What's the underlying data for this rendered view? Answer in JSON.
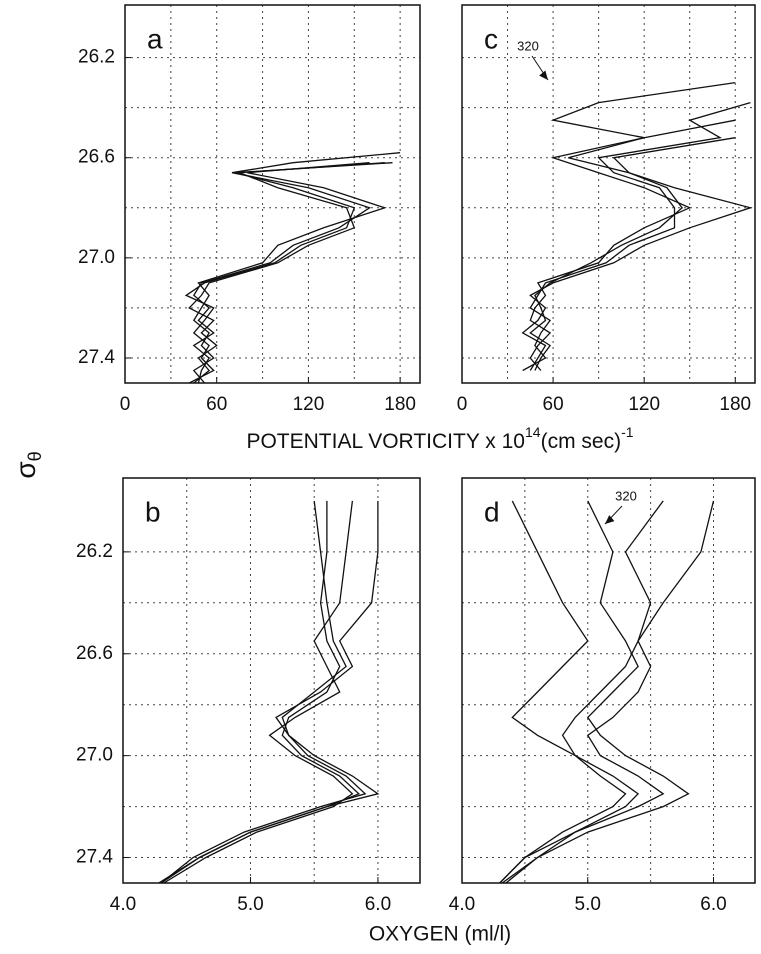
{
  "y_label": {
    "symbol": "σ",
    "subscript": "θ"
  },
  "pv_axis_label": {
    "text": "POTENTIAL VORTICITY x 10",
    "exponent": "14",
    "unit": "(cm sec)",
    "unit_exponent": "-1"
  },
  "oxygen_axis_label": "OXYGEN  (ml/l)",
  "chart_data": [
    {
      "type": "line",
      "panel_label": "a",
      "color": "#111",
      "y_inverted": true,
      "grid": true,
      "xlim": [
        0,
        193
      ],
      "ylim": [
        25.99,
        27.5
      ],
      "xticks": [
        0,
        60,
        120,
        180
      ],
      "yticks": [
        26.2,
        26.6,
        {
          "value": 27,
          "label": "27.0"
        },
        27.4
      ],
      "xgrid": [
        30,
        60,
        90,
        120,
        150,
        180
      ],
      "ygrid": [
        26.2,
        26.4,
        26.6,
        26.8,
        27,
        27.2,
        27.4
      ],
      "levels": [
        26.58,
        26.62,
        26.66,
        26.72,
        26.8,
        26.88,
        26.95,
        27.02,
        27.1,
        27.15,
        27.2,
        27.25,
        27.3,
        27.35,
        27.4,
        27.45,
        27.5
      ],
      "series": [
        {
          "values": [
            180,
            110,
            70,
            120,
            160,
            140,
            110,
            95,
            50,
            45,
            55,
            48,
            58,
            45,
            55,
            50,
            48
          ]
        },
        {
          "values": [
            null,
            170,
            75,
            100,
            145,
            150,
            120,
            100,
            55,
            50,
            42,
            58,
            50,
            60,
            48,
            55,
            45
          ]
        },
        {
          "values": [
            null,
            160,
            80,
            130,
            170,
            130,
            100,
            90,
            48,
            55,
            50,
            45,
            55,
            50,
            58,
            45,
            52
          ]
        },
        {
          "values": [
            null,
            175,
            72,
            110,
            150,
            145,
            115,
            98,
            52,
            40,
            58,
            52,
            45,
            55,
            50,
            58,
            42
          ]
        }
      ]
    },
    {
      "type": "line",
      "panel_label": "b",
      "color": "#111",
      "y_inverted": true,
      "grid": true,
      "xlim": [
        4.0,
        6.33
      ],
      "ylim": [
        25.91,
        27.5
      ],
      "xticks": [
        {
          "value": 4,
          "label": "4.0"
        },
        {
          "value": 5,
          "label": "5.0"
        },
        {
          "value": 6,
          "label": "6.0"
        }
      ],
      "yticks": [
        26.2,
        26.6,
        {
          "value": 27,
          "label": "27.0"
        },
        27.4
      ],
      "xgrid": [
        4.5,
        5,
        5.5,
        6
      ],
      "ygrid": [
        26.2,
        26.4,
        26.6,
        26.8,
        27,
        27.2,
        27.4
      ],
      "levels": [
        26.0,
        26.2,
        26.4,
        26.55,
        26.65,
        26.75,
        26.85,
        26.92,
        27.0,
        27.08,
        27.15,
        27.2,
        27.3,
        27.4,
        27.5
      ],
      "series": [
        {
          "values": [
            5.6,
            5.6,
            5.55,
            5.6,
            5.7,
            5.6,
            5.3,
            5.25,
            5.4,
            5.7,
            5.85,
            5.6,
            5.0,
            4.6,
            4.3
          ]
        },
        {
          "values": [
            6.0,
            6.0,
            5.95,
            5.7,
            5.8,
            5.55,
            5.2,
            5.3,
            5.45,
            5.75,
            5.9,
            5.55,
            4.95,
            4.55,
            4.3
          ]
        },
        {
          "values": [
            5.8,
            5.75,
            5.7,
            5.5,
            5.6,
            5.7,
            5.35,
            5.15,
            5.35,
            5.65,
            5.8,
            5.65,
            5.05,
            4.65,
            4.32
          ]
        },
        {
          "values": [
            5.5,
            5.55,
            5.6,
            5.65,
            5.75,
            5.5,
            5.25,
            5.3,
            5.5,
            5.8,
            6.0,
            5.6,
            5.0,
            4.6,
            4.28
          ]
        }
      ]
    },
    {
      "type": "line",
      "panel_label": "c",
      "color": "#111",
      "y_inverted": true,
      "grid": true,
      "xlim": [
        0,
        193
      ],
      "ylim": [
        25.99,
        27.5
      ],
      "xticks": [
        0,
        60,
        120,
        180
      ],
      "xgrid": [
        30,
        60,
        90,
        120,
        150,
        180
      ],
      "ygrid": [
        26.2,
        26.4,
        26.6,
        26.8,
        27,
        27.2,
        27.4
      ],
      "annotation": "320",
      "levels": [
        26.3,
        26.38,
        26.45,
        26.52,
        26.6,
        26.66,
        26.72,
        26.8,
        26.88,
        26.95,
        27.02,
        27.1,
        27.15,
        27.2,
        27.25,
        27.3,
        27.35,
        27.4,
        27.45
      ],
      "series": [
        {
          "values": [
            180,
            90,
            60,
            120,
            70,
            110,
            140,
            190,
            150,
            120,
            100,
            60,
            45,
            55,
            50,
            40,
            55,
            50,
            45
          ]
        },
        {
          "values": [
            null,
            190,
            150,
            170,
            90,
            100,
            130,
            140,
            140,
            110,
            95,
            55,
            50,
            45,
            58,
            52,
            48,
            55,
            40
          ]
        },
        {
          "values": [
            null,
            null,
            180,
            120,
            60,
            90,
            120,
            150,
            120,
            100,
            90,
            50,
            55,
            48,
            45,
            58,
            50,
            45,
            52
          ]
        },
        {
          "values": [
            null,
            null,
            null,
            180,
            100,
            110,
            135,
            145,
            130,
            105,
            85,
            58,
            48,
            52,
            55,
            45,
            58,
            52,
            48
          ]
        }
      ]
    },
    {
      "type": "line",
      "panel_label": "d",
      "color": "#111",
      "y_inverted": true,
      "grid": true,
      "xlim": [
        4.0,
        6.33
      ],
      "ylim": [
        25.91,
        27.5
      ],
      "xticks": [
        {
          "value": 4,
          "label": "4.0"
        },
        {
          "value": 5,
          "label": "5.0"
        },
        {
          "value": 6,
          "label": "6.0"
        }
      ],
      "xgrid": [
        4.5,
        5,
        5.5,
        6
      ],
      "ygrid": [
        26.2,
        26.4,
        26.6,
        26.8,
        27,
        27.2,
        27.4
      ],
      "annotation": "320",
      "levels": [
        26.0,
        26.2,
        26.4,
        26.55,
        26.65,
        26.75,
        26.85,
        26.92,
        27.0,
        27.08,
        27.15,
        27.2,
        27.3,
        27.4,
        27.5
      ],
      "series": [
        {
          "values": [
            5.0,
            5.2,
            5.1,
            5.3,
            5.4,
            5.2,
            5.0,
            5.1,
            5.3,
            5.6,
            5.8,
            5.6,
            5.0,
            4.6,
            4.32
          ]
        },
        {
          "values": [
            4.4,
            4.6,
            4.8,
            5.0,
            4.8,
            4.6,
            4.4,
            4.6,
            4.9,
            5.2,
            5.4,
            5.3,
            4.9,
            4.5,
            4.3
          ]
        },
        {
          "values": [
            5.6,
            5.3,
            5.5,
            5.4,
            5.3,
            5.1,
            4.9,
            4.8,
            4.9,
            5.1,
            5.3,
            5.2,
            4.8,
            4.5,
            4.3
          ]
        },
        {
          "values": [
            6.0,
            5.9,
            5.6,
            5.4,
            5.5,
            5.4,
            5.2,
            5.0,
            5.1,
            5.4,
            5.6,
            5.4,
            4.9,
            4.6,
            4.35
          ]
        }
      ]
    }
  ]
}
